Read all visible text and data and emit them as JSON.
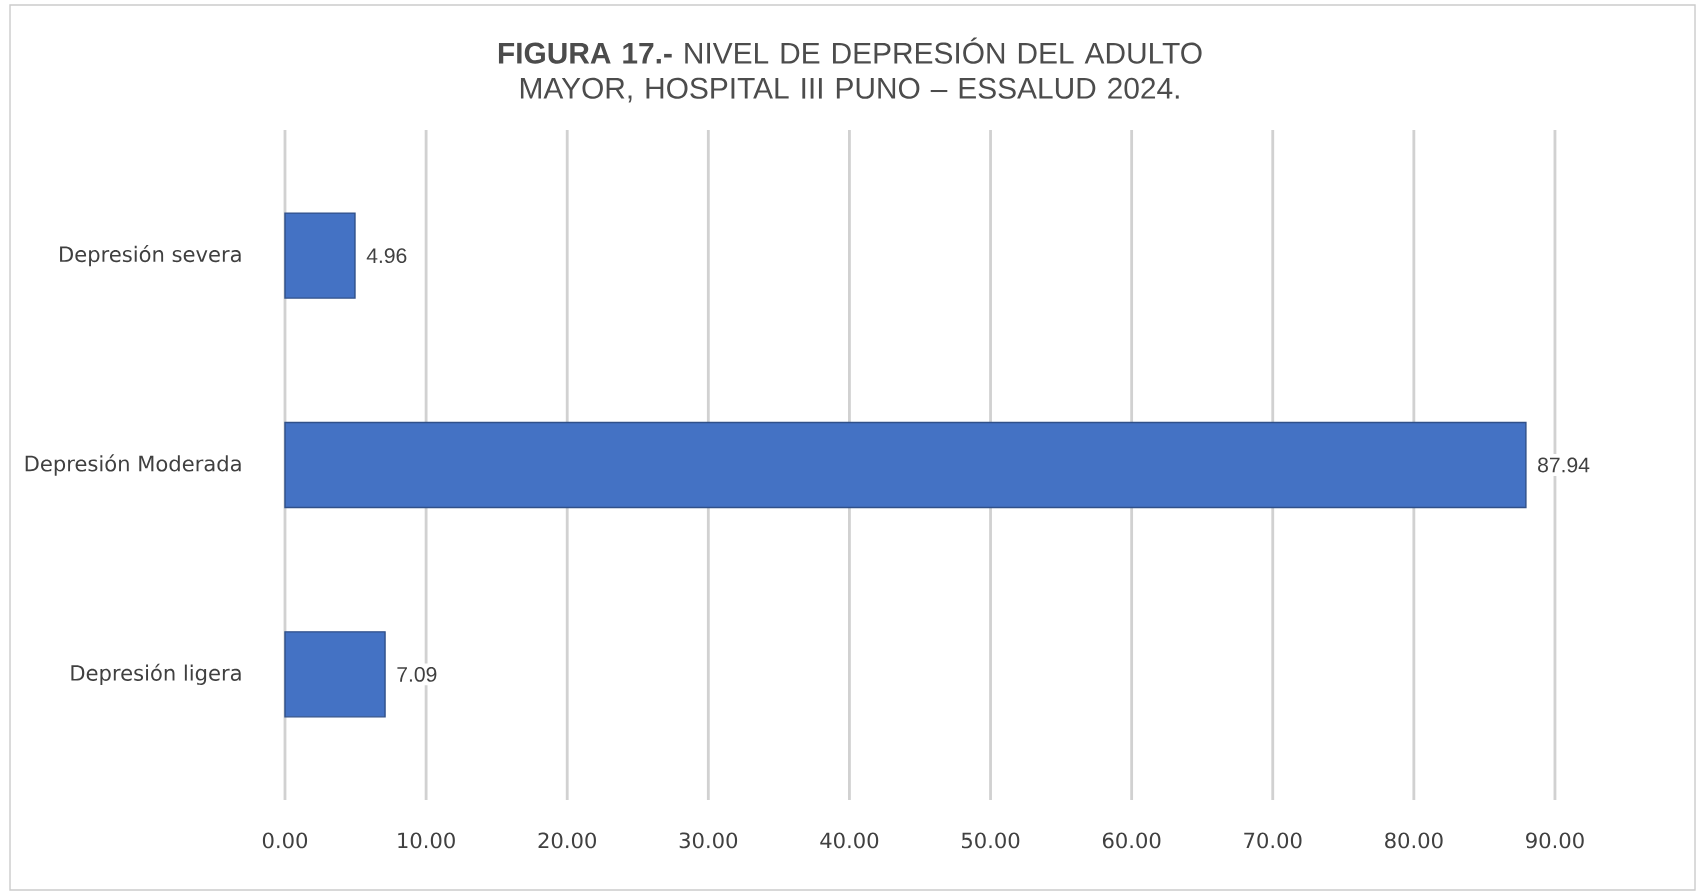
{
  "chart_data": {
    "type": "bar",
    "orientation": "horizontal",
    "title": "**FIGURA 17.-** NIVEL DE DEPRESIÓN DEL ADULTO MAYOR, HOSPITAL III PUNO – ESSALUD 2024.",
    "categories": [
      "Depresión severa",
      "Depresión Moderada",
      "Depresión ligera"
    ],
    "values": [
      4.96,
      87.94,
      7.09
    ],
    "color": "#4472c4",
    "data_labels": true,
    "xlim": [
      0,
      90
    ],
    "xticks": [
      {
        "value": 0,
        "label": "0.00"
      },
      {
        "value": 10,
        "label": "10.00"
      },
      {
        "value": 20,
        "label": "20.00"
      },
      {
        "value": 30,
        "label": "30.00"
      },
      {
        "value": 40,
        "label": "40.00"
      },
      {
        "value": 50,
        "label": "50.00"
      },
      {
        "value": 60,
        "label": "60.00"
      },
      {
        "value": 70,
        "label": "70.00"
      },
      {
        "value": 80,
        "label": "80.00"
      },
      {
        "value": 90,
        "label": "90.00"
      }
    ],
    "grid": "x"
  }
}
